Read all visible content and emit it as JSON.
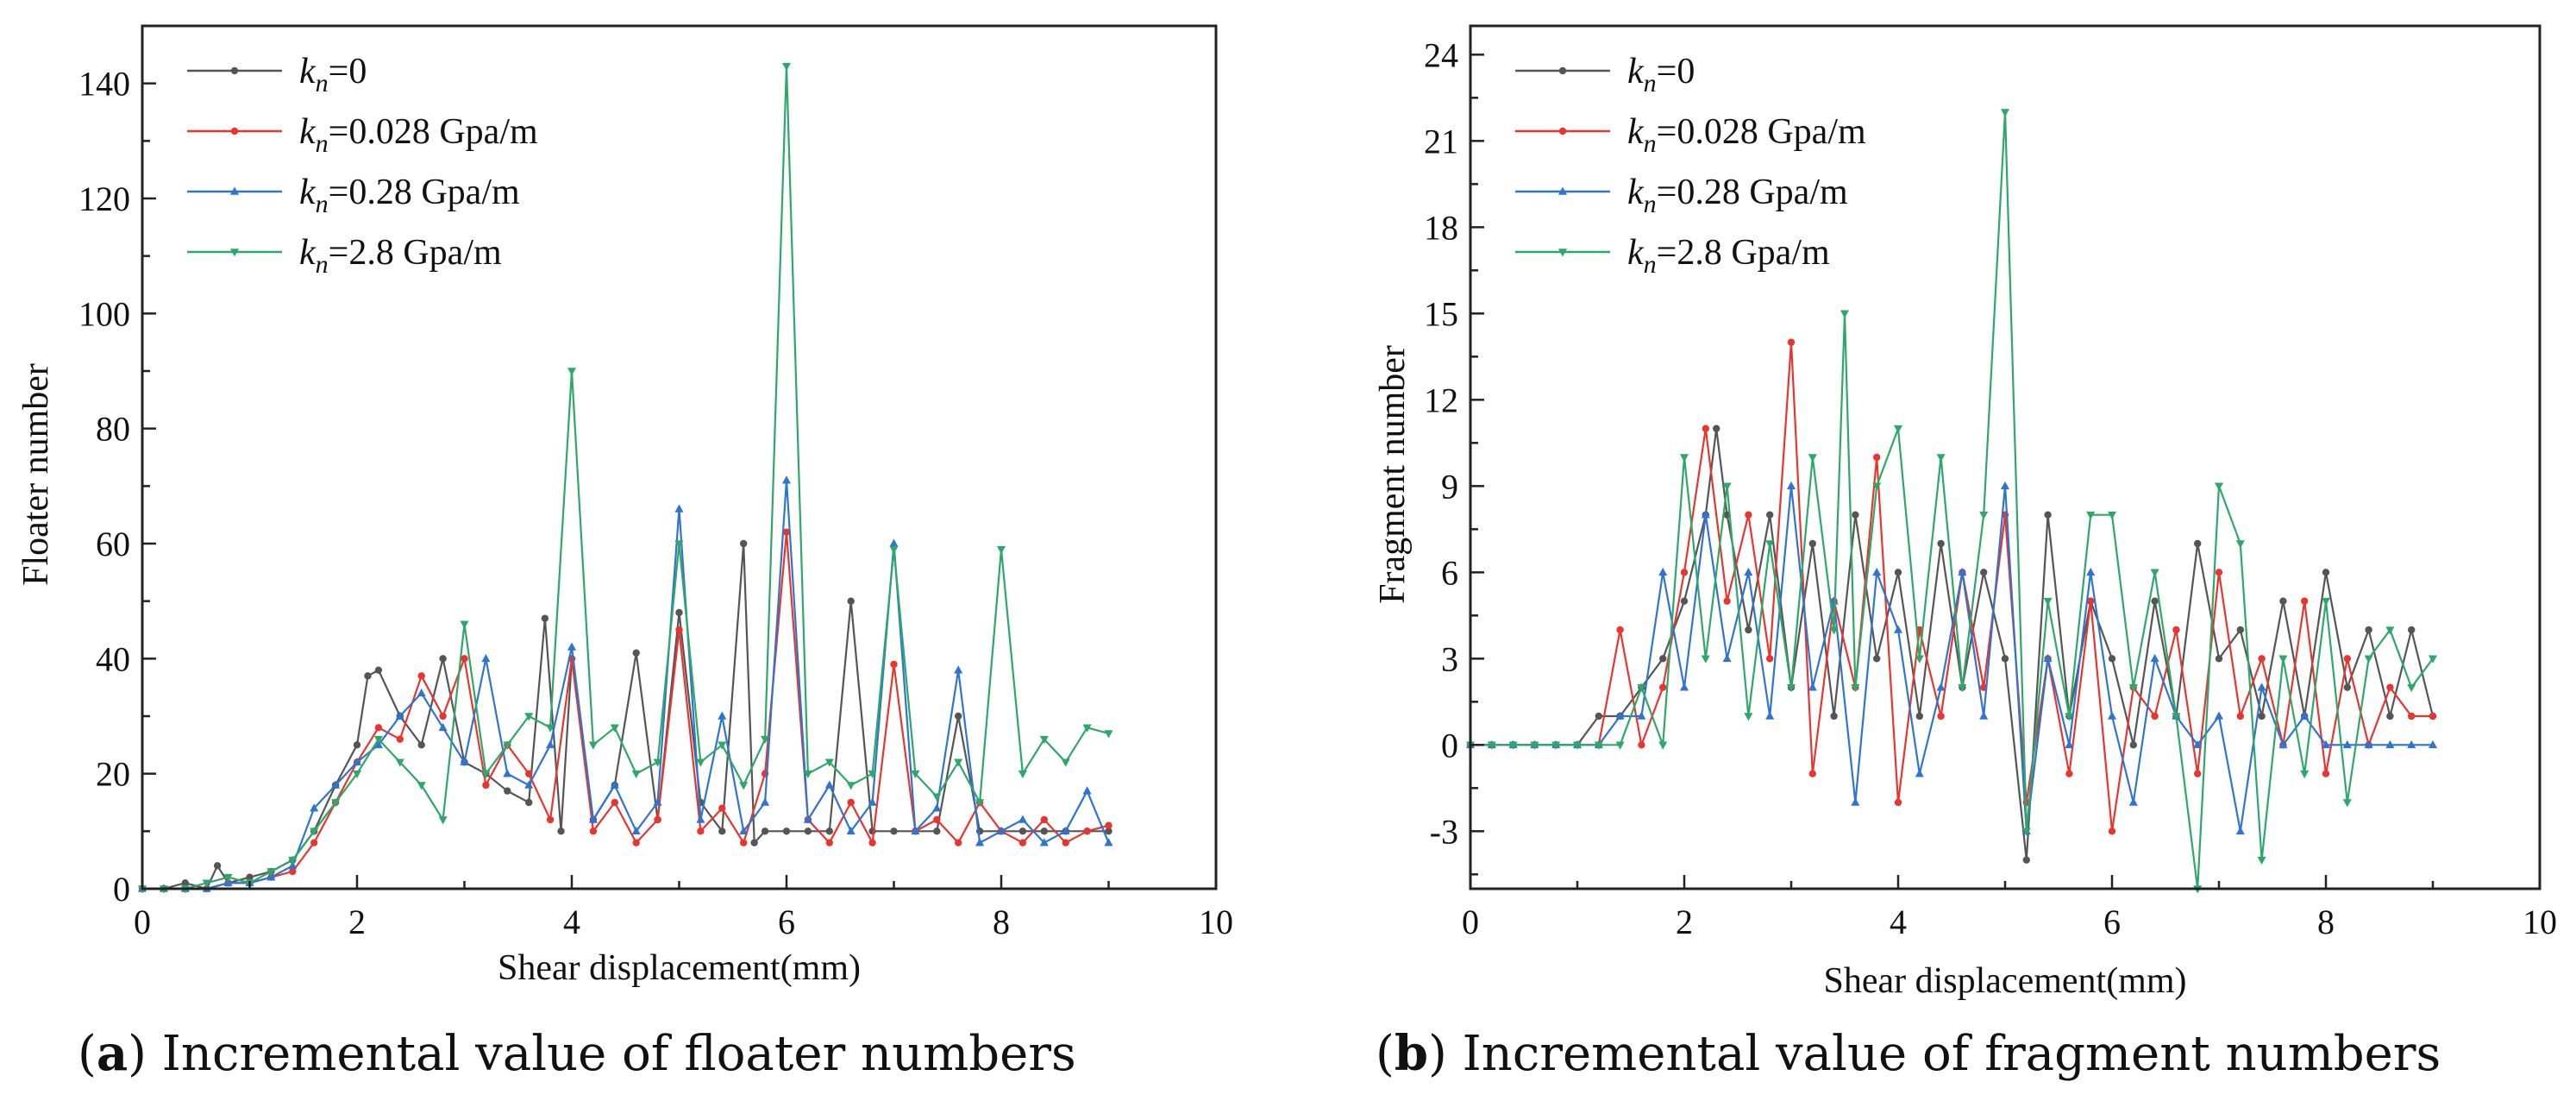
{
  "colors": {
    "kn0": "#555555",
    "kn0028": "#e8352f",
    "kn028": "#2f74d0",
    "kn28": "#2ea86a"
  },
  "chart_data": [
    {
      "type": "line",
      "caption_letter": "a",
      "caption_rest": ") Incremental value of floater numbers",
      "caption_open": "(",
      "xlabel": "Shear displacement(mm)",
      "ylabel": "Floater number",
      "xlim": [
        0,
        10
      ],
      "ylim": [
        0,
        150
      ],
      "xticks": [
        0,
        2,
        4,
        6,
        8,
        10
      ],
      "yticks": [
        0,
        20,
        40,
        60,
        80,
        100,
        120,
        140
      ],
      "legend_position": "top-left",
      "series": [
        {
          "name_k": "k",
          "name_sub": "n",
          "name_rest": "=0",
          "color_key": "kn0",
          "marker": "circle",
          "x": [
            0,
            0.2,
            0.4,
            0.6,
            0.7,
            0.8,
            1.0,
            1.2,
            1.4,
            1.6,
            1.8,
            2.0,
            2.1,
            2.2,
            2.4,
            2.6,
            2.8,
            3.0,
            3.2,
            3.4,
            3.6,
            3.75,
            3.9,
            4.0,
            4.2,
            4.4,
            4.6,
            4.8,
            5.0,
            5.2,
            5.4,
            5.6,
            5.7,
            5.8,
            6.0,
            6.2,
            6.4,
            6.6,
            6.8,
            7.0,
            7.2,
            7.4,
            7.6,
            7.8,
            8.0,
            8.2,
            8.4,
            8.6,
            8.8,
            9.0
          ],
          "y": [
            0,
            0,
            1,
            0,
            4,
            1,
            2,
            3,
            5,
            10,
            18,
            25,
            37,
            38,
            30,
            25,
            40,
            22,
            20,
            17,
            15,
            47,
            10,
            40,
            12,
            18,
            41,
            12,
            48,
            15,
            10,
            60,
            8,
            10,
            10,
            10,
            10,
            50,
            10,
            10,
            10,
            10,
            30,
            10,
            10,
            10,
            10,
            10,
            10,
            10
          ]
        },
        {
          "name_k": "k",
          "name_sub": "n",
          "name_rest": "=0.028 Gpa/m",
          "color_key": "kn0028",
          "marker": "circle",
          "x": [
            0,
            0.2,
            0.4,
            0.6,
            0.8,
            1.0,
            1.2,
            1.4,
            1.6,
            1.8,
            2.0,
            2.2,
            2.4,
            2.6,
            2.8,
            3.0,
            3.2,
            3.4,
            3.6,
            3.8,
            4.0,
            4.2,
            4.4,
            4.6,
            4.8,
            5.0,
            5.2,
            5.4,
            5.6,
            5.8,
            6.0,
            6.2,
            6.4,
            6.6,
            6.8,
            7.0,
            7.2,
            7.4,
            7.6,
            7.8,
            8.0,
            8.2,
            8.4,
            8.6,
            8.8,
            9.0
          ],
          "y": [
            0,
            0,
            0,
            0,
            1,
            1,
            2,
            3,
            8,
            15,
            22,
            28,
            26,
            37,
            30,
            40,
            18,
            25,
            20,
            12,
            40,
            10,
            15,
            8,
            12,
            45,
            10,
            14,
            8,
            20,
            62,
            12,
            8,
            15,
            8,
            39,
            10,
            12,
            8,
            15,
            10,
            8,
            12,
            8,
            10,
            11
          ]
        },
        {
          "name_k": "k",
          "name_sub": "n",
          "name_rest": "=0.28 Gpa/m",
          "color_key": "kn028",
          "marker": "triangle-up",
          "x": [
            0,
            0.2,
            0.4,
            0.6,
            0.8,
            1.0,
            1.2,
            1.4,
            1.6,
            1.8,
            2.0,
            2.2,
            2.4,
            2.6,
            2.8,
            3.0,
            3.2,
            3.4,
            3.6,
            3.8,
            4.0,
            4.2,
            4.4,
            4.6,
            4.8,
            5.0,
            5.2,
            5.4,
            5.6,
            5.8,
            6.0,
            6.2,
            6.4,
            6.6,
            6.8,
            7.0,
            7.2,
            7.4,
            7.6,
            7.8,
            8.0,
            8.2,
            8.4,
            8.6,
            8.8,
            9.0
          ],
          "y": [
            0,
            0,
            0,
            0,
            1,
            1,
            2,
            4,
            14,
            18,
            22,
            25,
            30,
            34,
            28,
            22,
            40,
            20,
            18,
            25,
            42,
            12,
            18,
            10,
            15,
            66,
            12,
            30,
            10,
            15,
            71,
            12,
            18,
            10,
            15,
            60,
            10,
            14,
            38,
            8,
            10,
            12,
            8,
            10,
            17,
            8
          ]
        },
        {
          "name_k": "k",
          "name_sub": "n",
          "name_rest": "=2.8 Gpa/m",
          "color_key": "kn28",
          "marker": "triangle-down",
          "x": [
            0,
            0.2,
            0.4,
            0.6,
            0.8,
            1.0,
            1.2,
            1.4,
            1.6,
            1.8,
            2.0,
            2.2,
            2.4,
            2.6,
            2.8,
            3.0,
            3.2,
            3.4,
            3.6,
            3.8,
            4.0,
            4.2,
            4.4,
            4.6,
            4.8,
            5.0,
            5.2,
            5.4,
            5.6,
            5.8,
            6.0,
            6.2,
            6.4,
            6.6,
            6.8,
            7.0,
            7.2,
            7.4,
            7.6,
            7.8,
            8.0,
            8.2,
            8.4,
            8.6,
            8.8,
            9.0
          ],
          "y": [
            0,
            0,
            0,
            1,
            2,
            1,
            3,
            5,
            10,
            15,
            20,
            26,
            22,
            18,
            12,
            46,
            20,
            25,
            30,
            28,
            90,
            25,
            28,
            20,
            22,
            60,
            22,
            25,
            18,
            26,
            143,
            20,
            22,
            18,
            20,
            59,
            20,
            16,
            22,
            15,
            59,
            20,
            26,
            22,
            28,
            27
          ]
        }
      ]
    },
    {
      "type": "line",
      "caption_letter": "b",
      "caption_rest": ") Incremental value of fragment numbers",
      "caption_open": "(",
      "xlabel": "Shear displacement(mm)",
      "ylabel": "Fragment number",
      "xlim": [
        0,
        10
      ],
      "ylim": [
        -5,
        25
      ],
      "xticks": [
        0,
        2,
        4,
        6,
        8,
        10
      ],
      "yticks": [
        -3,
        0,
        3,
        6,
        9,
        12,
        15,
        18,
        21,
        24
      ],
      "legend_position": "top-left",
      "series": [
        {
          "name_k": "k",
          "name_sub": "n",
          "name_rest": "=0",
          "color_key": "kn0",
          "marker": "circle",
          "x": [
            0,
            0.2,
            0.4,
            0.6,
            0.8,
            1.0,
            1.2,
            1.4,
            1.6,
            1.8,
            2.0,
            2.2,
            2.3,
            2.4,
            2.6,
            2.8,
            3.0,
            3.2,
            3.4,
            3.6,
            3.8,
            4.0,
            4.2,
            4.4,
            4.6,
            4.8,
            5.0,
            5.2,
            5.4,
            5.6,
            5.8,
            6.0,
            6.2,
            6.4,
            6.6,
            6.8,
            7.0,
            7.2,
            7.4,
            7.6,
            7.8,
            8.0,
            8.2,
            8.4,
            8.6,
            8.8,
            9.0
          ],
          "y": [
            0,
            0,
            0,
            0,
            0,
            0,
            1,
            1,
            2,
            3,
            5,
            8,
            11,
            8,
            4,
            8,
            2,
            7,
            1,
            8,
            3,
            6,
            1,
            7,
            2,
            6,
            3,
            -4,
            8,
            1,
            5,
            3,
            0,
            5,
            1,
            7,
            3,
            4,
            1,
            5,
            1,
            6,
            2,
            4,
            1,
            4,
            1
          ]
        },
        {
          "name_k": "k",
          "name_sub": "n",
          "name_rest": "=0.028 Gpa/m",
          "color_key": "kn0028",
          "marker": "circle",
          "x": [
            0,
            0.2,
            0.4,
            0.6,
            0.8,
            1.0,
            1.2,
            1.4,
            1.6,
            1.8,
            2.0,
            2.2,
            2.4,
            2.6,
            2.8,
            3.0,
            3.2,
            3.4,
            3.6,
            3.8,
            4.0,
            4.2,
            4.4,
            4.6,
            4.8,
            5.0,
            5.2,
            5.4,
            5.6,
            5.8,
            6.0,
            6.2,
            6.4,
            6.6,
            6.8,
            7.0,
            7.2,
            7.4,
            7.6,
            7.8,
            8.0,
            8.2,
            8.4,
            8.6,
            8.8,
            9.0
          ],
          "y": [
            0,
            0,
            0,
            0,
            0,
            0,
            0,
            4,
            0,
            2,
            6,
            11,
            5,
            8,
            3,
            14,
            -1,
            5,
            2,
            10,
            -2,
            4,
            1,
            6,
            2,
            8,
            -2,
            3,
            -1,
            5,
            -3,
            2,
            1,
            4,
            -1,
            6,
            1,
            3,
            0,
            5,
            -1,
            3,
            0,
            2,
            1,
            1
          ]
        },
        {
          "name_k": "k",
          "name_sub": "n",
          "name_rest": "=0.28 Gpa/m",
          "color_key": "kn028",
          "marker": "triangle-up",
          "x": [
            0,
            0.2,
            0.4,
            0.6,
            0.8,
            1.0,
            1.2,
            1.4,
            1.6,
            1.8,
            2.0,
            2.2,
            2.4,
            2.6,
            2.8,
            3.0,
            3.2,
            3.4,
            3.6,
            3.8,
            4.0,
            4.2,
            4.4,
            4.6,
            4.8,
            5.0,
            5.2,
            5.4,
            5.6,
            5.8,
            6.0,
            6.2,
            6.4,
            6.6,
            6.8,
            7.0,
            7.2,
            7.4,
            7.6,
            7.8,
            8.0,
            8.2,
            8.4,
            8.6,
            8.8,
            9.0
          ],
          "y": [
            0,
            0,
            0,
            0,
            0,
            0,
            0,
            1,
            1,
            6,
            2,
            8,
            3,
            6,
            1,
            9,
            2,
            5,
            -2,
            6,
            4,
            -1,
            2,
            6,
            1,
            9,
            -3,
            3,
            0,
            6,
            1,
            -2,
            3,
            1,
            0,
            1,
            -3,
            2,
            0,
            1,
            0,
            0,
            0,
            0,
            0,
            0
          ]
        },
        {
          "name_k": "k",
          "name_sub": "n",
          "name_rest": "=2.8 Gpa/m",
          "color_key": "kn28",
          "marker": "triangle-down",
          "x": [
            0,
            0.2,
            0.4,
            0.6,
            0.8,
            1.0,
            1.2,
            1.4,
            1.6,
            1.8,
            2.0,
            2.2,
            2.4,
            2.6,
            2.8,
            3.0,
            3.2,
            3.4,
            3.5,
            3.6,
            3.8,
            4.0,
            4.2,
            4.4,
            4.6,
            4.8,
            5.0,
            5.2,
            5.4,
            5.6,
            5.8,
            6.0,
            6.2,
            6.4,
            6.6,
            6.8,
            7.0,
            7.2,
            7.4,
            7.6,
            7.8,
            8.0,
            8.2,
            8.4,
            8.6,
            8.8,
            9.0
          ],
          "y": [
            0,
            0,
            0,
            0,
            0,
            0,
            0,
            0,
            2,
            0,
            10,
            3,
            9,
            1,
            7,
            2,
            10,
            4,
            15,
            2,
            9,
            11,
            3,
            10,
            2,
            8,
            22,
            -3,
            5,
            1,
            8,
            8,
            2,
            6,
            1,
            -5,
            9,
            7,
            -4,
            3,
            -1,
            5,
            -2,
            3,
            4,
            2,
            3
          ]
        }
      ]
    }
  ]
}
